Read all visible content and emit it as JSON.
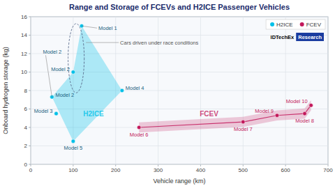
{
  "chart_data": {
    "type": "scatter",
    "title": "Range and Storage of FCEVs and H2ICE Passenger Vehicles",
    "x_label": "Vehicle range (km)",
    "y_label": "Onboard hydrogen storage (kg)",
    "xlim": [
      0,
      700
    ],
    "ylim": [
      0,
      16
    ],
    "xticks": [
      0,
      100,
      200,
      300,
      400,
      500,
      600,
      700
    ],
    "yticks": [
      0,
      2,
      4,
      6,
      8,
      10,
      12,
      14,
      16
    ],
    "grid": true,
    "legend": "upper right",
    "series": [
      {
        "name": "H2ICE",
        "type": "scatter",
        "marker": "circle",
        "color": "#00c0e8",
        "x": [
          50,
          100,
          120,
          100,
          60,
          215
        ],
        "values": [
          7.3,
          10.0,
          15.0,
          2.5,
          5.5,
          8.0
        ],
        "labels": [
          "Model 2",
          "Model 2",
          "Model 1",
          "Model 5",
          "Model 3",
          "Model 4"
        ],
        "area": {
          "x": [
            50,
            100,
            120,
            215,
            100
          ],
          "y": [
            7.3,
            10.0,
            15.0,
            8.0,
            2.5
          ]
        },
        "area_label": {
          "text": "H2ICE",
          "x": 148,
          "y": 5.5
        }
      },
      {
        "name": "FCEV",
        "type": "line",
        "marker": "circle",
        "color": "#c2185b",
        "x": [
          255,
          500,
          580,
          645,
          660
        ],
        "values": [
          4.0,
          4.6,
          5.3,
          5.5,
          6.4
        ],
        "labels": [
          "Model 6",
          "Model 7",
          "Model 9",
          "Model 8",
          "Model 10"
        ],
        "band_low": [
          3.45,
          4.05,
          4.75,
          4.95,
          5.85
        ],
        "band_high": [
          4.55,
          5.15,
          5.85,
          6.05,
          6.95
        ],
        "area_label": {
          "text": "FCEV",
          "x": 420,
          "y": 5.5
        }
      }
    ],
    "annotations": [
      {
        "text": "Cars driven under race conditions",
        "x": 130,
        "y": 13.2,
        "ellipse": {
          "x": 107,
          "y": 11.5,
          "width": 38,
          "height": 7.5
        }
      },
      {
        "text": "Model 2",
        "x": 50,
        "y": 7.3
      }
    ],
    "badge": [
      "IDTechEx",
      "Research"
    ]
  }
}
